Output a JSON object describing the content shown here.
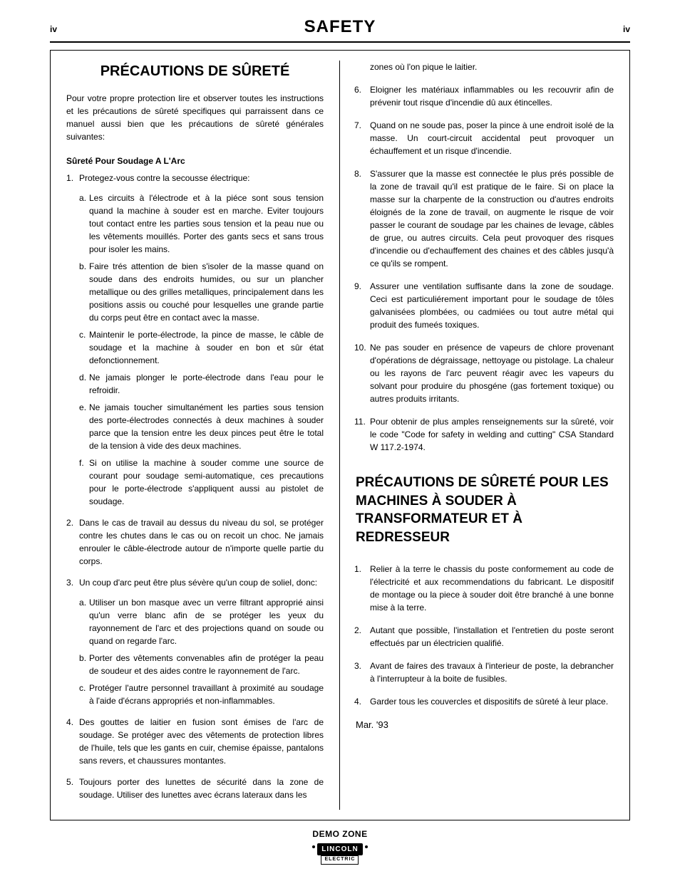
{
  "header": {
    "page_num": "iv",
    "title": "SAFETY"
  },
  "left": {
    "title": "PRÉCAUTIONS DE SÛRETÉ",
    "intro": "Pour votre propre protection lire et observer toutes les instructions et les précautions de sûreté specifiques qui parraissent dans ce manuel aussi bien que les précautions de sûreté générales suivantes:",
    "subhead": "Sûreté Pour Soudage A L'Arc",
    "items": [
      {
        "text": "Protegez-vous contre la secousse électrique:",
        "sub": [
          "Les circuits à l'électrode et à la piéce sont sous tension quand la machine à souder est en marche. Eviter toujours tout contact entre les parties sous tension et la peau nue ou les vêtements mouillés. Porter des gants secs et sans trous pour isoler les mains.",
          "Faire trés attention de bien s'isoler de la masse quand on soude dans des endroits humides, ou sur un plancher metallique ou des grilles metalliques, principalement dans les positions assis ou couché pour lesquelles une grande partie du corps peut être en contact avec la masse.",
          "Maintenir le porte-électrode, la pince de masse, le câble de soudage et la machine à souder en bon et sûr état defonctionnement.",
          "Ne jamais plonger le porte-électrode dans l'eau pour le refroidir.",
          "Ne jamais toucher simultanément les parties sous tension des porte-électrodes connectés à deux machines à souder parce que la tension entre les deux pinces peut être le total de la tension à vide des deux machines.",
          "Si on utilise la machine à souder comme une source de courant pour soudage semi-automatique, ces precautions pour le porte-électrode s'appliquent aussi au pistolet de soudage."
        ]
      },
      {
        "text": "Dans le cas de travail au dessus du niveau du sol, se protéger contre les chutes dans le cas ou on recoit un choc. Ne jamais enrouler le câble-électrode autour de n'importe quelle partie du corps."
      },
      {
        "text": "Un coup d'arc peut être plus sévère qu'un coup de soliel, donc:",
        "sub": [
          "Utiliser un bon masque avec un verre filtrant approprié ainsi qu'un verre blanc afin de se protéger les yeux du rayonnement de l'arc et des projections quand on soude ou quand on regarde l'arc.",
          "Porter des vêtements convenables afin de protéger la peau de soudeur et des aides contre le rayonnement de l'arc.",
          "Protéger l'autre personnel travaillant à proximité au soudage à l'aide d'écrans appropriés et non-inflammables."
        ]
      },
      {
        "text": "Des gouttes de laitier en fusion sont émises de l'arc de soudage. Se protéger avec des vêtements de protection libres de l'huile, tels que les gants en cuir, chemise épaisse, pantalons sans revers, et chaussures montantes."
      },
      {
        "text": "Toujours porter des lunettes de sécurité dans la zone de soudage. Utiliser des lunettes avec écrans lateraux dans les"
      }
    ]
  },
  "right": {
    "cont": "zones où l'on pique le laitier.",
    "items": [
      {
        "n": "6.",
        "t": "Eloigner les matériaux inflammables ou les recouvrir afin de prévenir tout risque d'incendie dû aux étincelles."
      },
      {
        "n": "7.",
        "t": "Quand on ne soude pas, poser la pince à une endroit isolé de la masse. Un court-circuit accidental peut provoquer un échauffement et un risque d'incendie."
      },
      {
        "n": "8.",
        "t": "S'assurer que la masse est connectée le plus prés possible de la zone de travail qu'il est pratique de le faire. Si on place la masse sur la charpente de la construction ou d'autres endroits éloignés de la zone de travail, on augmente le risque de voir passer le courant de soudage par les chaines de levage, câbles de grue, ou autres circuits. Cela peut provoquer des risques d'incendie ou d'echauffement des chaines et des câbles jusqu'à ce qu'ils se rompent."
      },
      {
        "n": "9.",
        "t": "Assurer une ventilation suffisante dans la zone de soudage. Ceci est particuliérement important pour le soudage de tôles galvanisées plombées, ou cadmiées ou tout autre métal qui produit des fumeés toxiques."
      },
      {
        "n": "10.",
        "t": "Ne pas souder en présence de vapeurs de chlore provenant d'opérations de dégraissage, nettoyage ou pistolage. La chaleur ou les rayons de l'arc peuvent réagir avec les vapeurs du solvant pour produire du phosgéne (gas fortement toxique) ou autres produits irritants."
      },
      {
        "n": "11.",
        "t": "Pour obtenir de plus amples renseignements sur la sûreté, voir le code \"Code for safety in welding and cutting\" CSA Standard W 117.2-1974."
      }
    ],
    "h2": "PRÉCAUTIONS DE SÛRETÉ POUR LES MACHINES À SOUDER À TRANSFORMATEUR ET À REDRESSEUR",
    "trans_items": [
      {
        "n": "1.",
        "t": "Relier à la terre le chassis du poste conformement au code de l'électricité et aux recommendations du fabricant. Le dispositif de montage ou la piece à souder doit être branché à une bonne mise à la terre."
      },
      {
        "n": "2.",
        "t": "Autant que possible, l'installation et l'entretien du poste seront effectués par un électricien qualifié."
      },
      {
        "n": "3.",
        "t": "Avant de faires des travaux à l'interieur de poste, la debrancher à l'interrupteur à la boite de fusibles."
      },
      {
        "n": "4.",
        "t": "Garder tous les couvercles et dispositifs de sûreté à leur place."
      }
    ],
    "date": "Mar. '93"
  },
  "footer": {
    "demo": "DEMO ZONE",
    "brand": "LINCOLN",
    "sub": "ELECTRIC"
  }
}
